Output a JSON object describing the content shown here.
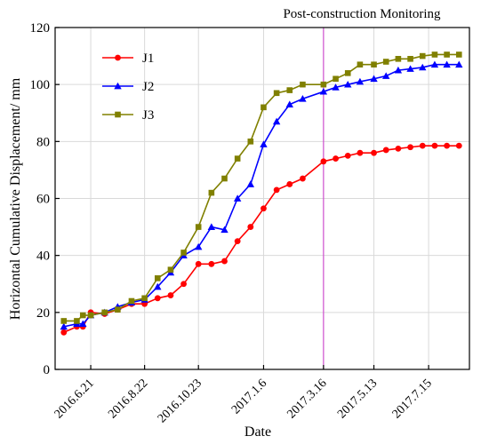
{
  "chart_data": {
    "type": "line",
    "xlabel": "Date",
    "ylabel": "Horizontal Cumulative Displacement/ mm",
    "annotation": "Post-construction Monitoring",
    "annotation_x": "2017.3.16",
    "x_tick_labels": [
      "2016.6.21",
      "2016.8.22",
      "2016.10.23",
      "2017.1.6",
      "2017.3.16",
      "2017.5.13",
      "2017.7.15"
    ],
    "y_ticks": [
      0,
      20,
      40,
      60,
      80,
      100,
      120
    ],
    "ylim": [
      0,
      120
    ],
    "grid": true,
    "legend_position": "top-left",
    "series": [
      {
        "name": "J1",
        "color": "#ff0000",
        "marker": "circle",
        "x": [
          "2016.5.21",
          "2016.6.5",
          "2016.6.12",
          "2016.6.21",
          "2016.7.7",
          "2016.7.22",
          "2016.8.7",
          "2016.8.22",
          "2016.9.6",
          "2016.9.21",
          "2016.10.6",
          "2016.10.23",
          "2016.11.7",
          "2016.11.22",
          "2016.12.7",
          "2016.12.22",
          "2017.1.6",
          "2017.1.21",
          "2017.2.5",
          "2017.2.20",
          "2017.3.16",
          "2017.3.30",
          "2017.4.13",
          "2017.4.27",
          "2017.5.13",
          "2017.5.27",
          "2017.6.10",
          "2017.6.24",
          "2017.7.8",
          "2017.7.22",
          "2017.8.5",
          "2017.8.19"
        ],
        "values": [
          13,
          15,
          15,
          20,
          19.5,
          21,
          23,
          23,
          25,
          26,
          30,
          37,
          37,
          38,
          45,
          50,
          56.5,
          63,
          65,
          67,
          73,
          74,
          75,
          76,
          76,
          77,
          77.5,
          78,
          78.5,
          78.5,
          78.5,
          78.5
        ]
      },
      {
        "name": "J2",
        "color": "#0000ff",
        "marker": "triangle",
        "x": [
          "2016.5.21",
          "2016.6.5",
          "2016.6.12",
          "2016.6.21",
          "2016.7.7",
          "2016.7.22",
          "2016.8.7",
          "2016.8.22",
          "2016.9.6",
          "2016.9.21",
          "2016.10.6",
          "2016.10.23",
          "2016.11.7",
          "2016.11.22",
          "2016.12.7",
          "2016.12.22",
          "2017.1.6",
          "2017.1.21",
          "2017.2.5",
          "2017.2.20",
          "2017.3.16",
          "2017.3.30",
          "2017.4.13",
          "2017.4.27",
          "2017.5.13",
          "2017.5.27",
          "2017.6.10",
          "2017.6.24",
          "2017.7.8",
          "2017.7.22",
          "2017.8.5",
          "2017.8.19"
        ],
        "values": [
          15,
          16,
          16,
          19,
          20,
          22,
          23.5,
          24.5,
          29,
          34,
          40,
          43,
          50,
          49,
          60,
          65,
          79,
          87,
          93,
          95,
          97.5,
          99,
          100,
          101,
          102,
          103,
          105,
          105.5,
          106,
          107,
          107,
          107
        ]
      },
      {
        "name": "J3",
        "color": "#808000",
        "marker": "square",
        "x": [
          "2016.5.21",
          "2016.6.5",
          "2016.6.12",
          "2016.6.21",
          "2016.7.7",
          "2016.7.22",
          "2016.8.7",
          "2016.8.22",
          "2016.9.6",
          "2016.9.21",
          "2016.10.6",
          "2016.10.23",
          "2016.11.7",
          "2016.11.22",
          "2016.12.7",
          "2016.12.22",
          "2017.1.6",
          "2017.1.21",
          "2017.2.5",
          "2017.2.20",
          "2017.3.16",
          "2017.3.30",
          "2017.4.13",
          "2017.4.27",
          "2017.5.13",
          "2017.5.27",
          "2017.6.10",
          "2017.6.24",
          "2017.7.8",
          "2017.7.22",
          "2017.8.5",
          "2017.8.19"
        ],
        "values": [
          17,
          17,
          19,
          19,
          20,
          21,
          24,
          25,
          32,
          35,
          41,
          50,
          62,
          67,
          74,
          80,
          92,
          97,
          98,
          100,
          100,
          102,
          104,
          107,
          107,
          108,
          109,
          109,
          110,
          110.5,
          110.5,
          110.5
        ]
      }
    ]
  }
}
